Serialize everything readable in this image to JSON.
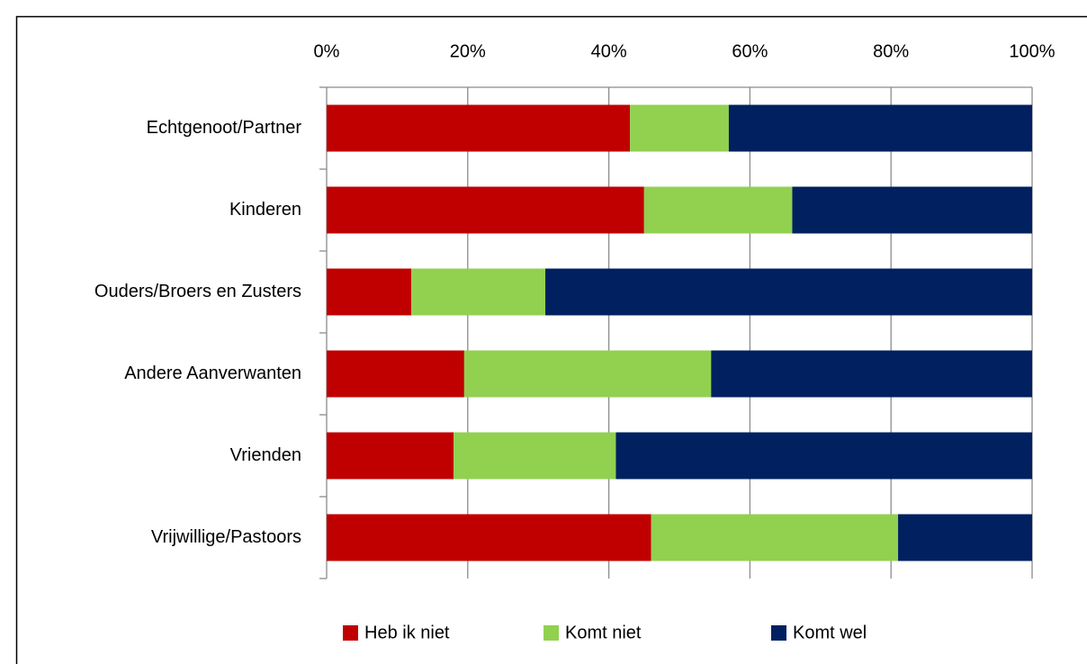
{
  "chart_data": {
    "type": "stacked-bar-horizontal",
    "categories": [
      "Echtgenoot/Partner",
      "Kinderen",
      "Ouders/Broers en Zusters",
      "Andere Aanverwanten",
      "Vrienden",
      "Vrijwillige/Pastoors"
    ],
    "series": [
      {
        "name": "Heb ik niet",
        "color": "#c00000",
        "values": [
          43,
          45,
          12,
          19.5,
          18,
          46
        ]
      },
      {
        "name": "Komt niet",
        "color": "#92d050",
        "values": [
          14,
          21,
          19,
          35,
          23,
          35
        ]
      },
      {
        "name": "Komt wel",
        "color": "#002060",
        "values": [
          43,
          34,
          69,
          45.5,
          59,
          19
        ]
      }
    ],
    "xlim": [
      0,
      100
    ],
    "xticks": [
      {
        "value": 0,
        "label": "0%"
      },
      {
        "value": 20,
        "label": "20%"
      },
      {
        "value": 40,
        "label": "40%"
      },
      {
        "value": 60,
        "label": "60%"
      },
      {
        "value": 80,
        "label": "80%"
      },
      {
        "value": 100,
        "label": "100%"
      }
    ],
    "grid": true,
    "legend": "bottom"
  }
}
